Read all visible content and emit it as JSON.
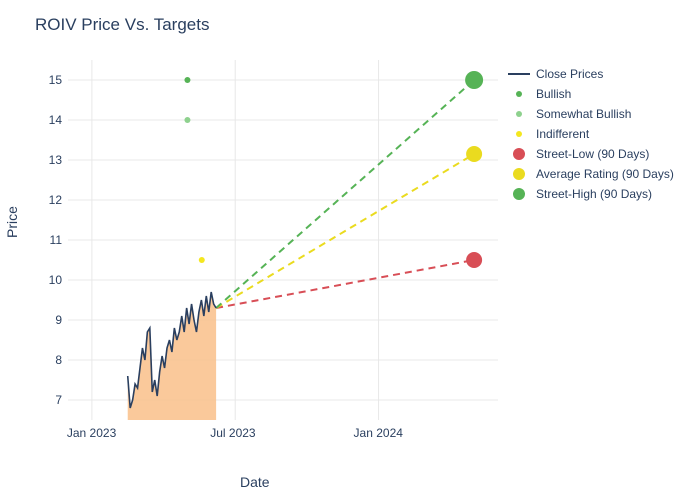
{
  "title": "ROIV Price Vs. Targets",
  "x_axis": {
    "label": "Date",
    "ticks": [
      "Jan 2023",
      "Jul 2023",
      "Jan 2024"
    ]
  },
  "y_axis": {
    "label": "Price",
    "min": 6.5,
    "max": 15.5,
    "ticks": [
      7,
      8,
      9,
      10,
      11,
      12,
      13,
      14,
      15
    ]
  },
  "x_range": {
    "start_month": -1,
    "end_month": 17
  },
  "colors": {
    "close_line": "#2a3f5f",
    "area_fill": "#f9c08a",
    "bullish": "#56b356",
    "somewhat_bullish": "#8ed18e",
    "indifferent": "#f4e71f",
    "street_low": "#d84e56",
    "street_avg": "#eadb1f",
    "street_high": "#56b356",
    "grid": "#e8e8e8",
    "text": "#2a3f5f"
  },
  "close_prices": {
    "start_month": 1.5,
    "end_month": 5.2,
    "y": [
      7.6,
      6.8,
      7.0,
      7.4,
      7.3,
      7.8,
      8.3,
      8.0,
      8.7,
      8.8,
      7.2,
      7.5,
      7.1,
      7.7,
      8.1,
      7.8,
      8.3,
      8.5,
      8.2,
      8.8,
      8.5,
      8.7,
      9.1,
      8.7,
      9.3,
      8.9,
      9.4,
      9.0,
      8.7,
      9.2,
      9.5,
      9.1,
      9.6,
      9.2,
      9.7,
      9.4,
      9.3
    ]
  },
  "rating_dots": [
    {
      "kind": "bullish",
      "month": 4.0,
      "y": 15.0,
      "size": 6
    },
    {
      "kind": "somewhat_bullish",
      "month": 4.0,
      "y": 14.0,
      "size": 6
    },
    {
      "kind": "indifferent",
      "month": 4.6,
      "y": 10.5,
      "size": 6
    }
  ],
  "projections": {
    "start": {
      "month": 5.2,
      "y": 9.3
    },
    "end_month": 16.0,
    "targets": [
      {
        "kind": "street_low",
        "y": 10.5,
        "dot_size": 16
      },
      {
        "kind": "street_avg",
        "y": 13.15,
        "dot_size": 16
      },
      {
        "kind": "street_high",
        "y": 15.0,
        "dot_size": 18
      }
    ]
  },
  "legend": [
    {
      "label": "Close Prices",
      "type": "line",
      "color_key": "close_line"
    },
    {
      "label": "Bullish",
      "type": "dot",
      "color_key": "bullish",
      "size": 6
    },
    {
      "label": "Somewhat Bullish",
      "type": "dot",
      "color_key": "somewhat_bullish",
      "size": 6
    },
    {
      "label": "Indifferent",
      "type": "dot",
      "color_key": "indifferent",
      "size": 6
    },
    {
      "label": "Street-Low (90 Days)",
      "type": "dot",
      "color_key": "street_low",
      "size": 12
    },
    {
      "label": "Average Rating (90 Days)",
      "type": "dot",
      "color_key": "street_avg",
      "size": 12
    },
    {
      "label": "Street-High (90 Days)",
      "type": "dot",
      "color_key": "street_high",
      "size": 12
    }
  ]
}
